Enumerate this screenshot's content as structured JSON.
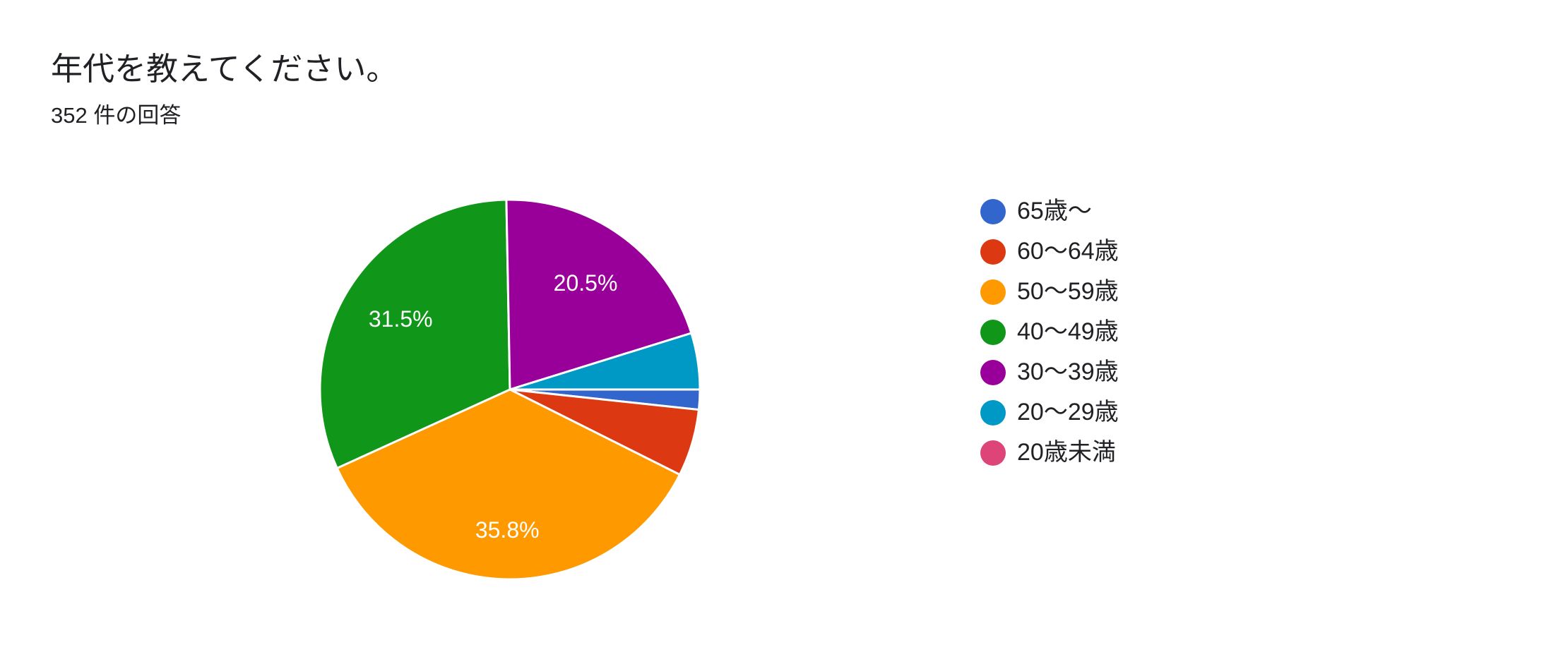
{
  "chart_data": {
    "type": "pie",
    "title": "年代を教えてください。",
    "subtitle": "352 件の回答",
    "categories": [
      "65歳〜",
      "60〜64歳",
      "50〜59歳",
      "40〜49歳",
      "30〜39歳",
      "20〜29歳",
      "20歳未満"
    ],
    "values": [
      1.7,
      5.7,
      35.8,
      31.5,
      20.5,
      4.8,
      0
    ],
    "value_labels": [
      null,
      null,
      "35.8%",
      "31.5%",
      "20.5%",
      null,
      null
    ],
    "colors": [
      "#3366cc",
      "#dc3912",
      "#ff9900",
      "#109618",
      "#990099",
      "#0099c6",
      "#dd4477"
    ],
    "legend": "right"
  }
}
